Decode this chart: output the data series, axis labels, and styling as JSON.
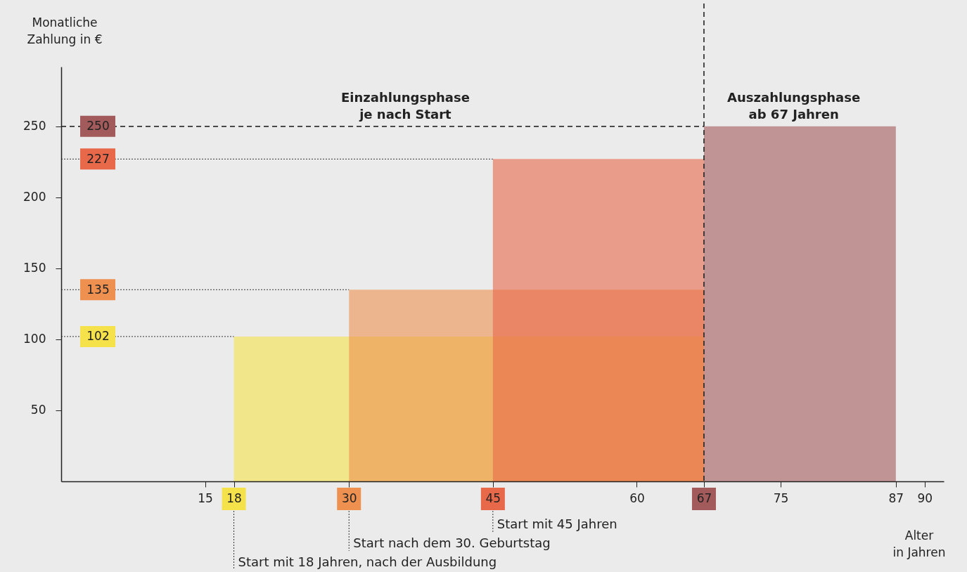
{
  "chart_data": {
    "type": "area",
    "ylabel": "Monatliche\nZahlung in €",
    "xlabel": "Alter\nin Jahren",
    "series": [
      {
        "color": "#f5e24a",
        "x": [
          18,
          67
        ],
        "values": [
          102,
          102
        ]
      },
      {
        "color": "#ee9150",
        "x": [
          30,
          67
        ],
        "values": [
          135,
          135
        ]
      },
      {
        "color": "#e8684a",
        "x": [
          45,
          67
        ],
        "values": [
          227,
          227
        ]
      },
      {
        "color": "#a35a5a",
        "x": [
          67,
          87
        ],
        "values": [
          250,
          250
        ]
      },
      {
        "type": "line",
        "color": "#333333",
        "line_style": "dotted",
        "x": [
          0,
          18
        ],
        "values": [
          102,
          102
        ]
      },
      {
        "type": "line",
        "color": "#333333",
        "line_style": "dotted",
        "x": [
          0,
          30
        ],
        "values": [
          135,
          135
        ]
      },
      {
        "type": "line",
        "color": "#333333",
        "line_style": "dotted",
        "x": [
          0,
          45
        ],
        "values": [
          227,
          227
        ]
      }
    ],
    "xlim": [
      0,
      92
    ],
    "ylim": [
      0,
      292
    ],
    "xticks": [
      15,
      18,
      30,
      45,
      60,
      67,
      75,
      87,
      90
    ],
    "yticks": [
      50,
      100,
      150,
      200,
      250
    ],
    "y2lim": [
      0,
      292
    ],
    "y2ticks": [
      102,
      135,
      227,
      250
    ],
    "grid": false,
    "ref_lines": [
      {
        "axis": "y",
        "value": 250,
        "line_style": "dashed",
        "color": "#333333"
      },
      {
        "axis": "x",
        "value": 67,
        "line_style": "dashed",
        "color": "#222222"
      }
    ],
    "annotations": [
      "Einzahlungsphase\nje nach Start",
      "Auszahlungsphase\nab 67 Jahren",
      "Start mit 18 Jahren, nach der Ausbildung",
      "Start nach dem 30. Geburtstag",
      "Start mit 45 Jahren"
    ]
  }
}
